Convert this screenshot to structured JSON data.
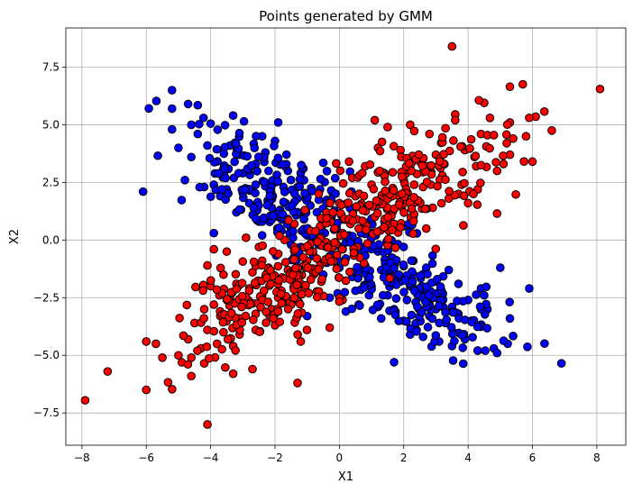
{
  "chart_data": {
    "type": "scatter",
    "title": "Points generated by GMM",
    "xlabel": "X1",
    "ylabel": "X2",
    "xlim": [
      -8.5,
      8.9
    ],
    "ylim": [
      -8.9,
      9.2
    ],
    "grid": true,
    "xticks": [
      -8,
      -6,
      -4,
      -2,
      0,
      2,
      4,
      6,
      8
    ],
    "yticks": [
      -7.5,
      -5.0,
      -2.5,
      0.0,
      2.5,
      5.0,
      7.5
    ],
    "xtick_labels": [
      "−8",
      "−6",
      "−4",
      "−2",
      "0",
      "2",
      "4",
      "6",
      "8"
    ],
    "ytick_labels": [
      "−7.5",
      "−5.0",
      "−2.5",
      "0.0",
      "2.5",
      "5.0",
      "7.5"
    ],
    "series": [
      {
        "color": "#0000ff",
        "component_means": [
          [
            -2.0,
            2.0
          ],
          [
            2.0,
            -2.0
          ]
        ],
        "component_std": [
          1.5,
          1.5
        ],
        "component_corr": -0.7,
        "points_per_component": 200,
        "points": [
          [
            -5.2,
            6.5
          ],
          [
            -5.2,
            5.7
          ],
          [
            -4.7,
            5.9
          ],
          [
            -4.4,
            5.85
          ],
          [
            -4.6,
            5.0
          ],
          [
            -5.2,
            4.8
          ],
          [
            -5.0,
            4.0
          ],
          [
            -4.4,
            4.6
          ],
          [
            -4.0,
            5.05
          ],
          [
            -3.3,
            5.4
          ],
          [
            -1.9,
            5.1
          ],
          [
            -4.6,
            3.6
          ],
          [
            -4.1,
            4.1
          ],
          [
            -3.6,
            3.1
          ],
          [
            -3.4,
            4.1
          ],
          [
            -2.4,
            4.5
          ],
          [
            -2.3,
            3.8
          ],
          [
            -6.1,
            2.1
          ],
          [
            -4.8,
            2.6
          ],
          [
            -4.2,
            2.3
          ],
          [
            -3.9,
            2.4
          ],
          [
            -3.5,
            2.2
          ],
          [
            -3.0,
            2.9
          ],
          [
            -2.6,
            2.4
          ],
          [
            -2.2,
            3.0
          ],
          [
            -1.6,
            3.0
          ],
          [
            -1.2,
            2.9
          ],
          [
            -0.5,
            3.35
          ],
          [
            -3.7,
            1.9
          ],
          [
            -3.2,
            1.2
          ],
          [
            -2.8,
            1.6
          ],
          [
            -2.5,
            0.8
          ],
          [
            -2.1,
            1.4
          ],
          [
            -1.7,
            2.1
          ],
          [
            -1.3,
            1.8
          ],
          [
            -0.9,
            1.5
          ],
          [
            -3.9,
            0.3
          ],
          [
            -2.4,
            0.2
          ],
          [
            -1.8,
            0.9
          ],
          [
            -1.5,
            0.5
          ],
          [
            -1.1,
            0.9
          ],
          [
            -0.7,
            1.2
          ],
          [
            -0.3,
            1.6
          ],
          [
            0.1,
            0.9
          ],
          [
            -1.5,
            -0.2
          ],
          [
            -1.0,
            0.2
          ],
          [
            -0.5,
            0.3
          ],
          [
            -0.1,
            0.5
          ],
          [
            0.3,
            0.2
          ],
          [
            -0.8,
            -0.7
          ],
          [
            -0.2,
            -0.3
          ],
          [
            0.2,
            -0.8
          ],
          [
            0.6,
            -0.2
          ],
          [
            1.0,
            0.3
          ],
          [
            1.2,
            -0.5
          ],
          [
            -0.5,
            -1.5
          ],
          [
            0.0,
            -1.2
          ],
          [
            0.4,
            -1.6
          ],
          [
            0.8,
            -1.1
          ],
          [
            1.3,
            -1.3
          ],
          [
            1.6,
            -0.8
          ],
          [
            2.0,
            -0.3
          ],
          [
            2.3,
            -0.9
          ],
          [
            0.5,
            -2.2
          ],
          [
            1.0,
            -2.0
          ],
          [
            1.5,
            -2.4
          ],
          [
            1.9,
            -1.8
          ],
          [
            2.3,
            -1.5
          ],
          [
            2.7,
            -1.2
          ],
          [
            3.0,
            -1.8
          ],
          [
            3.4,
            -1.3
          ],
          [
            1.2,
            -2.9
          ],
          [
            1.7,
            -3.0
          ],
          [
            2.1,
            -2.6
          ],
          [
            2.5,
            -2.3
          ],
          [
            2.8,
            -2.8
          ],
          [
            3.2,
            -2.4
          ],
          [
            3.7,
            -1.9
          ],
          [
            4.0,
            -2.6
          ],
          [
            4.4,
            -2.1
          ],
          [
            2.0,
            -3.5
          ],
          [
            2.4,
            -3.9
          ],
          [
            2.8,
            -3.3
          ],
          [
            3.3,
            -3.6
          ],
          [
            3.7,
            -3.2
          ],
          [
            4.1,
            -3.5
          ],
          [
            4.6,
            -3.0
          ],
          [
            2.6,
            -4.2
          ],
          [
            3.1,
            -4.4
          ],
          [
            3.5,
            -4.6
          ],
          [
            3.9,
            -4.3
          ],
          [
            4.3,
            -4.8
          ],
          [
            4.8,
            -4.7
          ],
          [
            5.3,
            -3.4
          ],
          [
            5.0,
            -1.2
          ],
          [
            5.9,
            -2.1
          ],
          [
            6.9,
            -5.35
          ],
          [
            4.9,
            -4.9
          ],
          [
            1.7,
            -5.3
          ],
          [
            0.2,
            -3.1
          ],
          [
            -1.0,
            -3.3
          ],
          [
            -0.3,
            -2.5
          ],
          [
            0.7,
            -0.5
          ],
          [
            -1.3,
            2.3
          ],
          [
            -0.6,
            2.2
          ],
          [
            -2.0,
            2.5
          ],
          [
            -2.6,
            3.3
          ],
          [
            -3.1,
            3.7
          ],
          [
            -2.0,
            4.3
          ],
          [
            -1.1,
            2.6
          ],
          [
            -0.2,
            2.0
          ],
          [
            0.5,
            1.4
          ],
          [
            1.4,
            0.8
          ],
          [
            2.0,
            0.6
          ],
          [
            1.6,
            -1.9
          ],
          [
            2.2,
            -2.0
          ],
          [
            0.9,
            -1.7
          ],
          [
            -0.3,
            -0.7
          ],
          [
            -1.2,
            -0.3
          ],
          [
            -1.8,
            0.4
          ],
          [
            3.5,
            -2.9
          ],
          [
            4.5,
            -2.4
          ],
          [
            3.0,
            -3.0
          ],
          [
            2.2,
            -4.1
          ],
          [
            1.3,
            -3.4
          ],
          [
            0.6,
            -2.8
          ]
        ]
      },
      {
        "color": "#ff0000",
        "component_means": [
          [
            -2.0,
            -2.0
          ],
          [
            2.0,
            2.0
          ]
        ],
        "component_std": [
          1.5,
          1.5
        ],
        "component_corr": 0.7,
        "points_per_component": 200,
        "points": [
          [
            3.5,
            8.4
          ],
          [
            8.1,
            6.55
          ],
          [
            5.3,
            6.65
          ],
          [
            6.1,
            5.35
          ],
          [
            5.9,
            5.3
          ],
          [
            6.6,
            4.75
          ],
          [
            5.3,
            5.1
          ],
          [
            4.5,
            5.95
          ],
          [
            3.6,
            5.45
          ],
          [
            3.6,
            5.2
          ],
          [
            3.3,
            4.85
          ],
          [
            2.8,
            4.6
          ],
          [
            2.2,
            5.0
          ],
          [
            1.5,
            4.9
          ],
          [
            1.1,
            5.2
          ],
          [
            4.4,
            4.6
          ],
          [
            4.6,
            4.55
          ],
          [
            4.8,
            4.55
          ],
          [
            5.4,
            4.4
          ],
          [
            5.2,
            4.2
          ],
          [
            5.8,
            4.5
          ],
          [
            5.3,
            3.7
          ],
          [
            6.0,
            3.4
          ],
          [
            4.9,
            3.0
          ],
          [
            5.1,
            3.3
          ],
          [
            4.2,
            3.6
          ],
          [
            3.9,
            3.9
          ],
          [
            3.0,
            3.7
          ],
          [
            2.5,
            3.4
          ],
          [
            1.9,
            3.9
          ],
          [
            1.2,
            4.0
          ],
          [
            0.8,
            3.2
          ],
          [
            0.3,
            3.4
          ],
          [
            4.9,
            1.15
          ],
          [
            4.3,
            2.2
          ],
          [
            3.8,
            2.4
          ],
          [
            3.2,
            2.8
          ],
          [
            2.6,
            2.3
          ],
          [
            2.0,
            2.6
          ],
          [
            1.5,
            2.1
          ],
          [
            1.0,
            2.4
          ],
          [
            0.5,
            1.9
          ],
          [
            0.0,
            1.6
          ],
          [
            -0.4,
            1.2
          ],
          [
            3.4,
            1.8
          ],
          [
            2.9,
            1.4
          ],
          [
            2.3,
            1.0
          ],
          [
            1.7,
            0.7
          ],
          [
            1.1,
            1.0
          ],
          [
            0.6,
            0.5
          ],
          [
            0.1,
            0.3
          ],
          [
            -0.4,
            -0.1
          ],
          [
            -0.9,
            0.4
          ],
          [
            -1.4,
            -0.3
          ],
          [
            -1.9,
            -0.6
          ],
          [
            -2.4,
            -0.9
          ],
          [
            -1.0,
            -0.9
          ],
          [
            -1.6,
            -1.3
          ],
          [
            -2.1,
            -1.6
          ],
          [
            -2.7,
            -1.4
          ],
          [
            -3.2,
            -1.9
          ],
          [
            -3.6,
            -1.5
          ],
          [
            -1.2,
            -1.9
          ],
          [
            -1.8,
            -2.2
          ],
          [
            -2.4,
            -2.4
          ],
          [
            -2.9,
            -2.7
          ],
          [
            -3.4,
            -2.5
          ],
          [
            -3.9,
            -2.8
          ],
          [
            -1.5,
            -2.8
          ],
          [
            -2.1,
            -3.0
          ],
          [
            -2.6,
            -3.2
          ],
          [
            -3.1,
            -3.4
          ],
          [
            -3.7,
            -3.3
          ],
          [
            -4.2,
            -3.0
          ],
          [
            -2.0,
            -3.7
          ],
          [
            -2.6,
            -3.9
          ],
          [
            -3.1,
            -4.1
          ],
          [
            -3.6,
            -4.0
          ],
          [
            -4.1,
            -3.9
          ],
          [
            -4.5,
            -3.6
          ],
          [
            -3.3,
            -4.6
          ],
          [
            -3.8,
            -4.5
          ],
          [
            -4.3,
            -4.7
          ],
          [
            -4.7,
            -4.3
          ],
          [
            -5.0,
            -5.0
          ],
          [
            -4.6,
            -5.1
          ],
          [
            -5.5,
            -5.1
          ],
          [
            -5.7,
            -4.5
          ],
          [
            -6.0,
            -4.4
          ],
          [
            -4.2,
            -5.35
          ],
          [
            -4.6,
            -5.9
          ],
          [
            -3.3,
            -5.8
          ],
          [
            -2.7,
            -5.6
          ],
          [
            -6.0,
            -6.5
          ],
          [
            -7.2,
            -5.7
          ],
          [
            -7.9,
            -6.95
          ],
          [
            -4.1,
            -8.0
          ],
          [
            -1.3,
            -6.2
          ],
          [
            -1.2,
            -4.4
          ],
          [
            -0.3,
            -3.8
          ],
          [
            0.1,
            -2.6
          ],
          [
            -0.8,
            -1.5
          ],
          [
            -4.0,
            -2.0
          ],
          [
            -3.9,
            -0.4
          ],
          [
            -3.5,
            -0.5
          ],
          [
            -4.1,
            -1.1
          ],
          [
            -2.9,
            0.1
          ],
          [
            -2.5,
            -0.3
          ],
          [
            -1.4,
            0.7
          ],
          [
            -0.3,
            0.9
          ],
          [
            0.4,
            2.7
          ],
          [
            1.4,
            2.9
          ],
          [
            2.2,
            3.1
          ],
          [
            3.1,
            3.2
          ],
          [
            3.7,
            2.0
          ],
          [
            4.0,
            1.6
          ],
          [
            2.7,
            0.5
          ],
          [
            1.9,
            1.7
          ],
          [
            0.8,
            1.3
          ],
          [
            -0.6,
            0.6
          ],
          [
            -1.7,
            0.0
          ],
          [
            -2.2,
            -1.2
          ],
          [
            -2.8,
            -2.1
          ],
          [
            -3.5,
            -2.6
          ],
          [
            -1.9,
            -2.5
          ],
          [
            -0.6,
            -1.1
          ]
        ]
      }
    ]
  }
}
